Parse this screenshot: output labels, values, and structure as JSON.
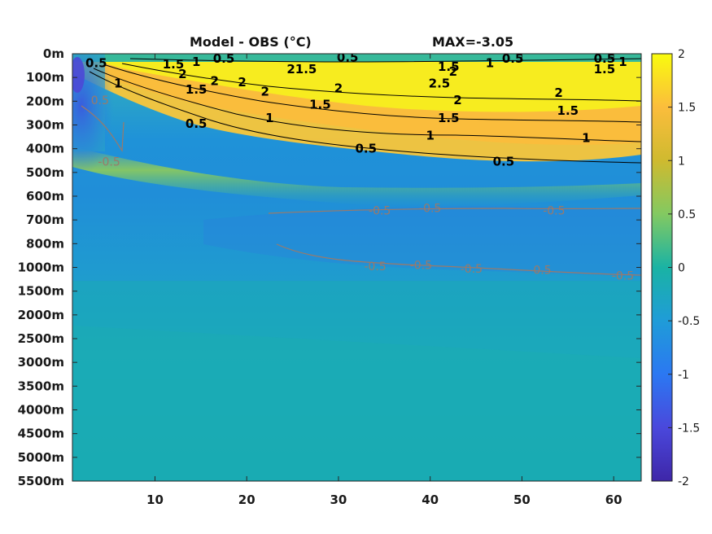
{
  "title": {
    "left": "Model - OBS (°C)",
    "right": "MAX=-3.05"
  },
  "chart_data": {
    "type": "heatmap",
    "title": "Model - OBS (°C)",
    "annotation": "MAX=-3.05",
    "x_ticks": [
      10,
      20,
      30,
      40,
      50,
      60
    ],
    "xlim": [
      1,
      63
    ],
    "y_ticks": [
      "0m",
      "100m",
      "200m",
      "300m",
      "400m",
      "500m",
      "600m",
      "700m",
      "800m",
      "1000m",
      "1500m",
      "2000m",
      "2500m",
      "3000m",
      "3500m",
      "4000m",
      "4500m",
      "5000m",
      "5500m"
    ],
    "colorbar": {
      "ticks": [
        "2",
        "1.5",
        "1",
        "0.5",
        "0",
        "-0.5",
        "-1",
        "-1.5",
        "-2"
      ],
      "range": [
        -2,
        2
      ],
      "colormap": "parula"
    },
    "contour_labels_black": [
      {
        "text": "0.5",
        "x": 3.6,
        "d": 0.4
      },
      {
        "text": "1.5",
        "x": 12,
        "d": 0.45
      },
      {
        "text": "1",
        "x": 14.5,
        "d": 0.35
      },
      {
        "text": "0.5",
        "x": 17.5,
        "d": 0.2
      },
      {
        "text": "2",
        "x": 13,
        "d": 0.85
      },
      {
        "text": "1",
        "x": 6,
        "d": 1.25
      },
      {
        "text": "1.5",
        "x": 14.5,
        "d": 1.5
      },
      {
        "text": "2",
        "x": 16.5,
        "d": 1.15
      },
      {
        "text": "2",
        "x": 19.5,
        "d": 1.2
      },
      {
        "text": "2",
        "x": 22,
        "d": 1.6
      },
      {
        "text": "21.5",
        "x": 26,
        "d": 0.65
      },
      {
        "text": "0.5",
        "x": 31,
        "d": 0.15
      },
      {
        "text": "2",
        "x": 30,
        "d": 1.45
      },
      {
        "text": "1.5",
        "x": 28,
        "d": 2.15
      },
      {
        "text": "1",
        "x": 22.5,
        "d": 2.7
      },
      {
        "text": "0.5",
        "x": 14.5,
        "d": 2.95
      },
      {
        "text": "0.5",
        "x": 33,
        "d": 4.0
      },
      {
        "text": "1",
        "x": 40,
        "d": 3.45
      },
      {
        "text": "1.5",
        "x": 42,
        "d": 0.55
      },
      {
        "text": "2",
        "x": 42.5,
        "d": 0.75
      },
      {
        "text": "2.5",
        "x": 41,
        "d": 1.25
      },
      {
        "text": "2",
        "x": 43,
        "d": 1.95
      },
      {
        "text": "1.5",
        "x": 42,
        "d": 2.7
      },
      {
        "text": "1",
        "x": 46.5,
        "d": 0.4
      },
      {
        "text": "0.5",
        "x": 49,
        "d": 0.2
      },
      {
        "text": "2",
        "x": 54,
        "d": 1.65
      },
      {
        "text": "1.5",
        "x": 55,
        "d": 2.4
      },
      {
        "text": "1",
        "x": 57,
        "d": 3.55
      },
      {
        "text": "0.5",
        "x": 48,
        "d": 4.55
      },
      {
        "text": "0.5",
        "x": 59,
        "d": 0.2
      },
      {
        "text": "1.5",
        "x": 59,
        "d": 0.65
      },
      {
        "text": "1",
        "x": 61,
        "d": 0.35
      }
    ],
    "contour_labels_grey": [
      {
        "text": "0.5",
        "x": 4,
        "d": 1.95
      },
      {
        "text": "-0.5",
        "x": 5,
        "d": 4.55
      },
      {
        "text": "-0.5",
        "x": 34.5,
        "d": 6.6
      },
      {
        "text": "-0.5",
        "x": 40,
        "d": 6.5
      },
      {
        "text": "-0.5",
        "x": 53.5,
        "d": 6.6
      },
      {
        "text": "-0.5",
        "x": 34,
        "d": 8.95
      },
      {
        "text": "-0.5",
        "x": 39,
        "d": 8.9
      },
      {
        "text": "-0.5",
        "x": 44.5,
        "d": 9.05
      },
      {
        "text": "-0.5",
        "x": 52,
        "d": 9.1
      },
      {
        "text": "-0.5",
        "x": 61,
        "d": 9.35
      }
    ]
  }
}
